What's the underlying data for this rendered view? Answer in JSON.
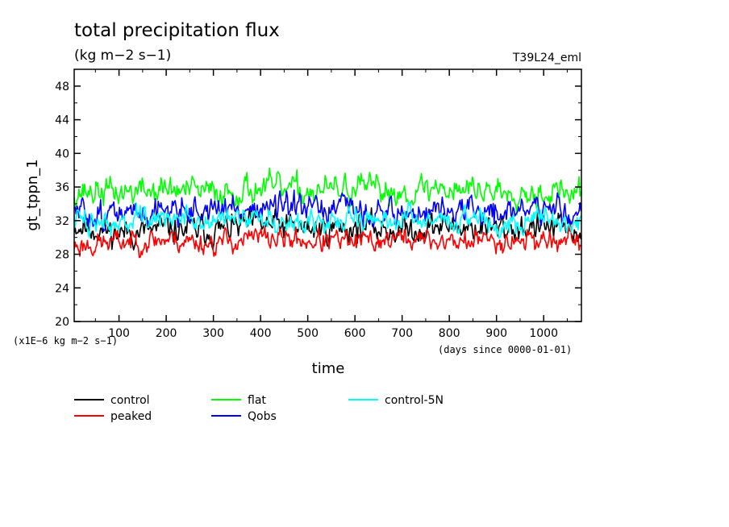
{
  "chart_data": {
    "type": "line",
    "title": "total precipitation flux",
    "subtitle": "(kg m−2 s−1)",
    "run_label": "T39L24_eml",
    "xlabel": "time",
    "ylabel": "gt_tppn_1",
    "x_units_note": "(days since 0000-01-01)",
    "y_scale_note": "(x1E−6 kg m−2 s−1)",
    "xlim": [
      5,
      1080
    ],
    "ylim": [
      20,
      50
    ],
    "xticks": [
      100,
      200,
      300,
      400,
      500,
      600,
      700,
      800,
      900,
      1000
    ],
    "yticks": [
      20,
      24,
      28,
      32,
      36,
      40,
      44,
      48
    ],
    "grid": false,
    "legend_position": "bottom",
    "series": [
      {
        "name": "control",
        "color": "#000000",
        "mean": 31.2,
        "amplitude": 1.6,
        "seed": 11,
        "x_sample": [
          5,
          100,
          200,
          300,
          400,
          500,
          600,
          700,
          800,
          900,
          1000,
          1080
        ],
        "y_sample": [
          31.5,
          30.5,
          31.0,
          30.8,
          31.6,
          31.0,
          31.2,
          30.9,
          31.4,
          31.0,
          31.3,
          30.6
        ]
      },
      {
        "name": "peaked",
        "color": "#ff0000",
        "mean": 29.6,
        "amplitude": 1.3,
        "seed": 23,
        "x_sample": [
          5,
          100,
          200,
          300,
          400,
          500,
          600,
          700,
          800,
          900,
          1000,
          1080
        ],
        "y_sample": [
          29.0,
          29.5,
          29.8,
          29.3,
          30.0,
          29.6,
          29.4,
          29.9,
          29.5,
          29.7,
          29.8,
          29.2
        ]
      },
      {
        "name": "flat",
        "color": "#00ff00",
        "mean": 35.6,
        "amplitude": 1.6,
        "seed": 37,
        "x_sample": [
          5,
          100,
          200,
          300,
          400,
          500,
          600,
          700,
          800,
          900,
          1000,
          1080
        ],
        "y_sample": [
          35.5,
          35.4,
          35.7,
          35.3,
          35.9,
          35.5,
          35.8,
          35.4,
          36.0,
          35.6,
          35.5,
          35.2
        ]
      },
      {
        "name": "Qobs",
        "color": "#0000ff",
        "mean": 33.0,
        "amplitude": 1.6,
        "seed": 51,
        "x_sample": [
          5,
          100,
          200,
          300,
          400,
          500,
          600,
          700,
          800,
          900,
          1000,
          1080
        ],
        "y_sample": [
          33.0,
          32.6,
          33.5,
          33.2,
          33.6,
          33.1,
          33.4,
          32.8,
          33.2,
          33.0,
          33.5,
          32.7
        ]
      },
      {
        "name": "control-5N",
        "color": "#00ffff",
        "mean": 32.1,
        "amplitude": 1.4,
        "seed": 73,
        "x_sample": [
          5,
          100,
          200,
          300,
          400,
          500,
          600,
          700,
          800,
          900,
          1000,
          1080
        ],
        "y_sample": [
          32.0,
          31.8,
          32.2,
          31.9,
          32.4,
          31.8,
          32.0,
          32.3,
          32.1,
          31.9,
          32.2,
          31.6
        ]
      }
    ]
  }
}
